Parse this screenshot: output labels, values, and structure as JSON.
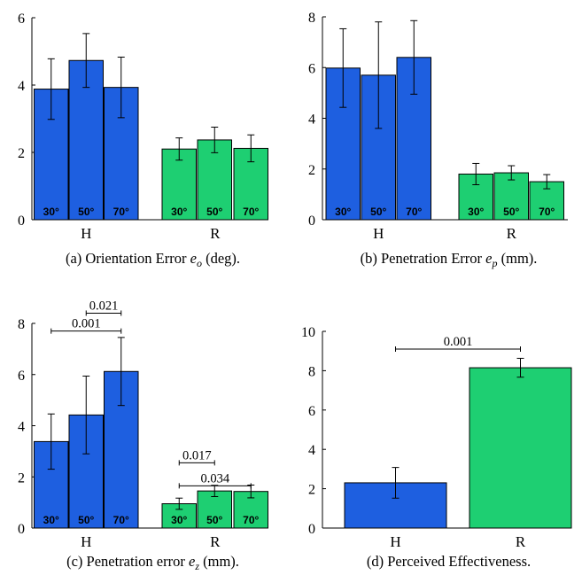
{
  "colors": {
    "H": "#1e5fe0",
    "R": "#1ecf72",
    "axis": "#000000"
  },
  "chart_data": [
    {
      "type": "bar",
      "caption_prefix": "(a) Orientation Error ",
      "caption_var": "e",
      "caption_sub": "o",
      "caption_suffix": " (deg).",
      "groups": [
        "H",
        "R"
      ],
      "bar_labels": [
        "30°",
        "50°",
        "70°"
      ],
      "values": [
        [
          3.88,
          4.73,
          3.93
        ],
        [
          2.1,
          2.37,
          2.12
        ]
      ],
      "errors": [
        [
          0.9,
          0.8,
          0.9
        ],
        [
          0.33,
          0.38,
          0.4
        ]
      ],
      "ylim": [
        0,
        6
      ],
      "yticks": [
        "0",
        "2",
        "4",
        "6"
      ],
      "brackets": []
    },
    {
      "type": "bar",
      "caption_prefix": "(b) Penetration Error ",
      "caption_var": "e",
      "caption_sub": "p",
      "caption_suffix": " (mm).",
      "groups": [
        "H",
        "R"
      ],
      "bar_labels": [
        "30°",
        "50°",
        "70°"
      ],
      "values": [
        [
          5.98,
          5.7,
          6.4
        ],
        [
          1.8,
          1.85,
          1.5
        ]
      ],
      "errors": [
        [
          1.55,
          2.1,
          1.45
        ],
        [
          0.42,
          0.28,
          0.28
        ]
      ],
      "ylim": [
        0,
        8
      ],
      "yticks": [
        "0",
        "2",
        "4",
        "6",
        "8"
      ],
      "brackets": []
    },
    {
      "type": "bar",
      "caption_prefix": "(c) Penetration error ",
      "caption_var": "e",
      "caption_sub": "z",
      "caption_suffix": " (mm).",
      "groups": [
        "H",
        "R"
      ],
      "bar_labels": [
        "30°",
        "50°",
        "70°"
      ],
      "values": [
        [
          3.38,
          4.42,
          6.12
        ],
        [
          0.95,
          1.45,
          1.43
        ]
      ],
      "errors": [
        [
          1.08,
          1.52,
          1.33
        ],
        [
          0.22,
          0.22,
          0.25
        ]
      ],
      "ylim": [
        0,
        8
      ],
      "yticks": [
        "0",
        "2",
        "4",
        "6",
        "8"
      ],
      "brackets": [
        {
          "label": "0.021",
          "from_group": 0,
          "from_bar": 1,
          "to_group": 0,
          "to_bar": 2,
          "y": 8.4
        },
        {
          "label": "0.001",
          "from_group": 0,
          "from_bar": 0,
          "to_group": 0,
          "to_bar": 2,
          "y": 7.7
        },
        {
          "label": "0.017",
          "from_group": 1,
          "from_bar": 0,
          "to_group": 1,
          "to_bar": 1,
          "y": 2.55
        },
        {
          "label": "0.034",
          "from_group": 1,
          "from_bar": 0,
          "to_group": 1,
          "to_bar": 2,
          "y": 1.65
        }
      ]
    },
    {
      "type": "bar",
      "caption_prefix": "(d) Perceived Effectiveness.",
      "caption_var": "",
      "caption_sub": "",
      "caption_suffix": "",
      "groups": [
        "H",
        "R"
      ],
      "bar_labels": [],
      "values": [
        [
          2.3
        ],
        [
          8.15
        ]
      ],
      "errors": [
        [
          0.78
        ],
        [
          0.48
        ]
      ],
      "ylim": [
        0,
        10
      ],
      "yticks": [
        "0",
        "2",
        "4",
        "6",
        "8",
        "10"
      ],
      "brackets": [
        {
          "label": "0.001",
          "from_group": 0,
          "from_bar": 0,
          "to_group": 1,
          "to_bar": 0,
          "y": 9.1
        }
      ]
    }
  ]
}
